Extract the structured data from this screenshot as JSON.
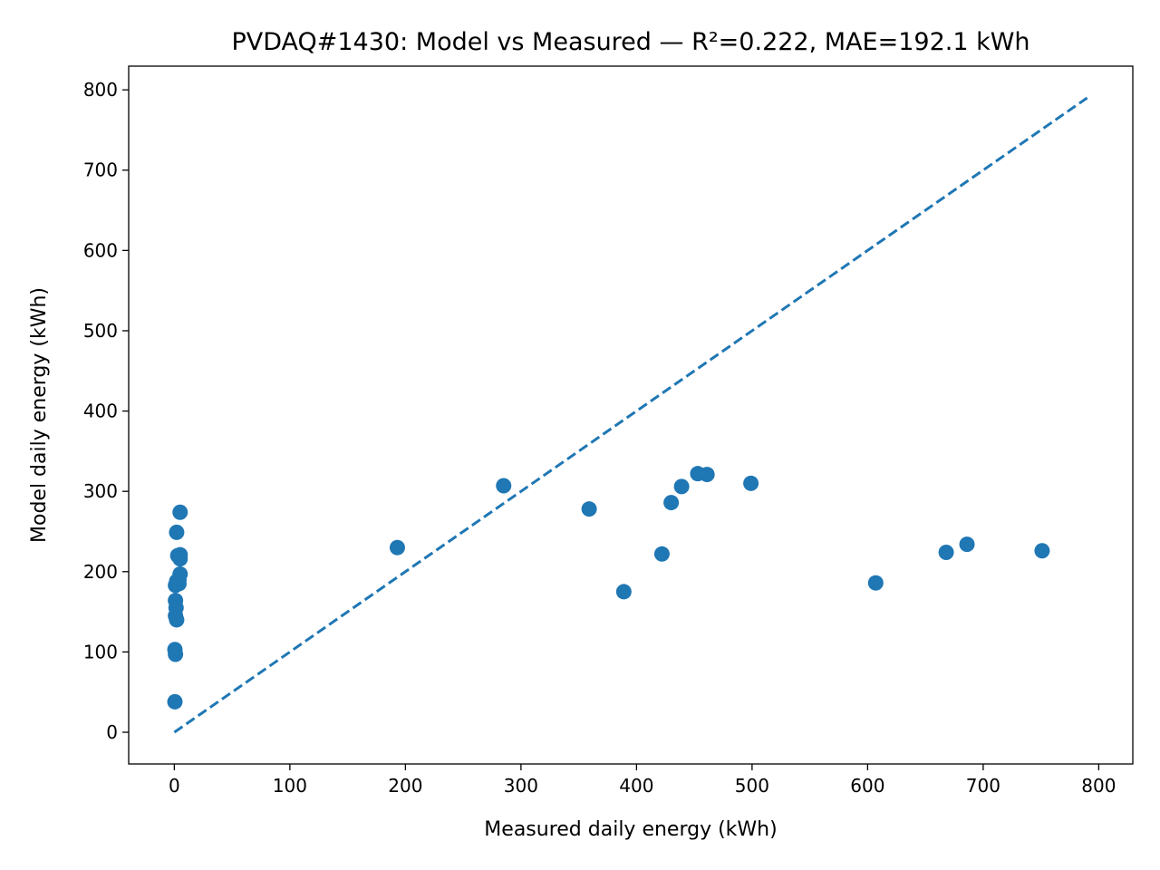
{
  "chart_data": {
    "type": "scatter",
    "title": "PVDAQ#1430: Model vs Measured — R²=0.222, MAE=192.1 kWh",
    "xlabel": "Measured daily energy (kWh)",
    "ylabel": "Model daily energy (kWh)",
    "xlim": [
      -39.5,
      829.5
    ],
    "ylim": [
      -39.5,
      829.5
    ],
    "xticks": [
      0,
      100,
      200,
      300,
      400,
      500,
      600,
      700,
      800
    ],
    "yticks": [
      0,
      100,
      200,
      300,
      400,
      500,
      600,
      700,
      800
    ],
    "grid": false,
    "legend": "none",
    "point_color": "#1f77b4",
    "reference_line": {
      "x": [
        0,
        790
      ],
      "y": [
        0,
        790
      ],
      "style": "dashed",
      "color": "#1f77b4"
    },
    "points": [
      {
        "x": 0.5,
        "y": 38
      },
      {
        "x": 0.5,
        "y": 103
      },
      {
        "x": 1,
        "y": 97
      },
      {
        "x": 1,
        "y": 145
      },
      {
        "x": 1,
        "y": 164
      },
      {
        "x": 1.5,
        "y": 155
      },
      {
        "x": 2,
        "y": 140
      },
      {
        "x": 1,
        "y": 183
      },
      {
        "x": 2,
        "y": 188
      },
      {
        "x": 2,
        "y": 249
      },
      {
        "x": 3,
        "y": 220
      },
      {
        "x": 4,
        "y": 190
      },
      {
        "x": 5,
        "y": 274
      },
      {
        "x": 5,
        "y": 197
      },
      {
        "x": 5,
        "y": 221
      },
      {
        "x": 5,
        "y": 216
      },
      {
        "x": 4,
        "y": 185
      },
      {
        "x": 193,
        "y": 230
      },
      {
        "x": 285,
        "y": 307
      },
      {
        "x": 359,
        "y": 278
      },
      {
        "x": 389,
        "y": 175
      },
      {
        "x": 422,
        "y": 222
      },
      {
        "x": 430,
        "y": 286
      },
      {
        "x": 439,
        "y": 306
      },
      {
        "x": 453,
        "y": 322
      },
      {
        "x": 461,
        "y": 321
      },
      {
        "x": 499,
        "y": 310
      },
      {
        "x": 607,
        "y": 186
      },
      {
        "x": 668,
        "y": 224
      },
      {
        "x": 686,
        "y": 234
      },
      {
        "x": 751,
        "y": 226
      }
    ]
  }
}
